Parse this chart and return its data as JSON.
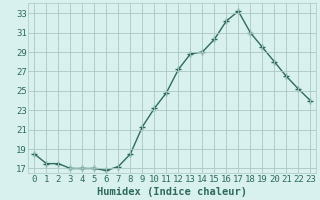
{
  "x": [
    0,
    1,
    2,
    3,
    4,
    5,
    6,
    7,
    8,
    9,
    10,
    11,
    12,
    13,
    14,
    15,
    16,
    17,
    18,
    19,
    20,
    21,
    22,
    23
  ],
  "y": [
    18.5,
    17.5,
    17.5,
    17.0,
    17.0,
    17.0,
    16.8,
    17.2,
    18.5,
    21.3,
    23.2,
    24.8,
    27.2,
    28.8,
    29.0,
    30.3,
    32.2,
    33.2,
    31.0,
    29.5,
    28.0,
    26.5,
    25.2,
    24.0
  ],
  "line_color": "#2e6b5e",
  "marker": "+",
  "bg_color": "#d8f0ee",
  "grid_color": "#aac8c4",
  "xlabel": "Humidex (Indice chaleur)",
  "xlim": [
    -0.5,
    23.5
  ],
  "ylim": [
    16.5,
    34.0
  ],
  "yticks": [
    17,
    19,
    21,
    23,
    25,
    27,
    29,
    31,
    33
  ],
  "xticks": [
    0,
    1,
    2,
    3,
    4,
    5,
    6,
    7,
    8,
    9,
    10,
    11,
    12,
    13,
    14,
    15,
    16,
    17,
    18,
    19,
    20,
    21,
    22,
    23
  ],
  "xlabel_fontsize": 7.5,
  "tick_fontsize": 6.5,
  "line_width": 1.0,
  "marker_size": 4,
  "marker_ew": 1.0
}
